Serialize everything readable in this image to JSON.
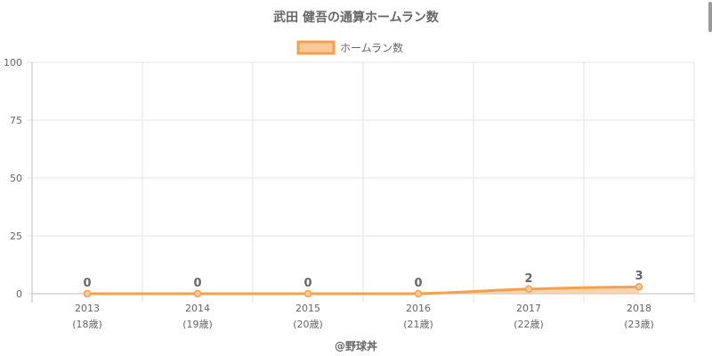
{
  "chart_data": {
    "type": "area",
    "title": "武田 健吾の通算ホームラン数",
    "categories": [
      [
        "2013",
        "(18歳)"
      ],
      [
        "2014",
        "(19歳)"
      ],
      [
        "2015",
        "(20歳)"
      ],
      [
        "2016",
        "(21歳)"
      ],
      [
        "2017",
        "(22歳)"
      ],
      [
        "2018",
        "(23歳)"
      ]
    ],
    "series": [
      {
        "name": "ホームラン数",
        "values": [
          0,
          0,
          0,
          0,
          2,
          3
        ]
      }
    ],
    "ylim": [
      0,
      100
    ],
    "yticks": [
      0,
      25,
      50,
      75,
      100
    ],
    "grid": true,
    "legend": "top-center",
    "credit": "@野球丼",
    "colors": {
      "line": "#f5a04a",
      "fill": "#f9c99b",
      "text": "#666666",
      "grid": "#e3e3e3",
      "axis": "#bdbdbd"
    }
  }
}
